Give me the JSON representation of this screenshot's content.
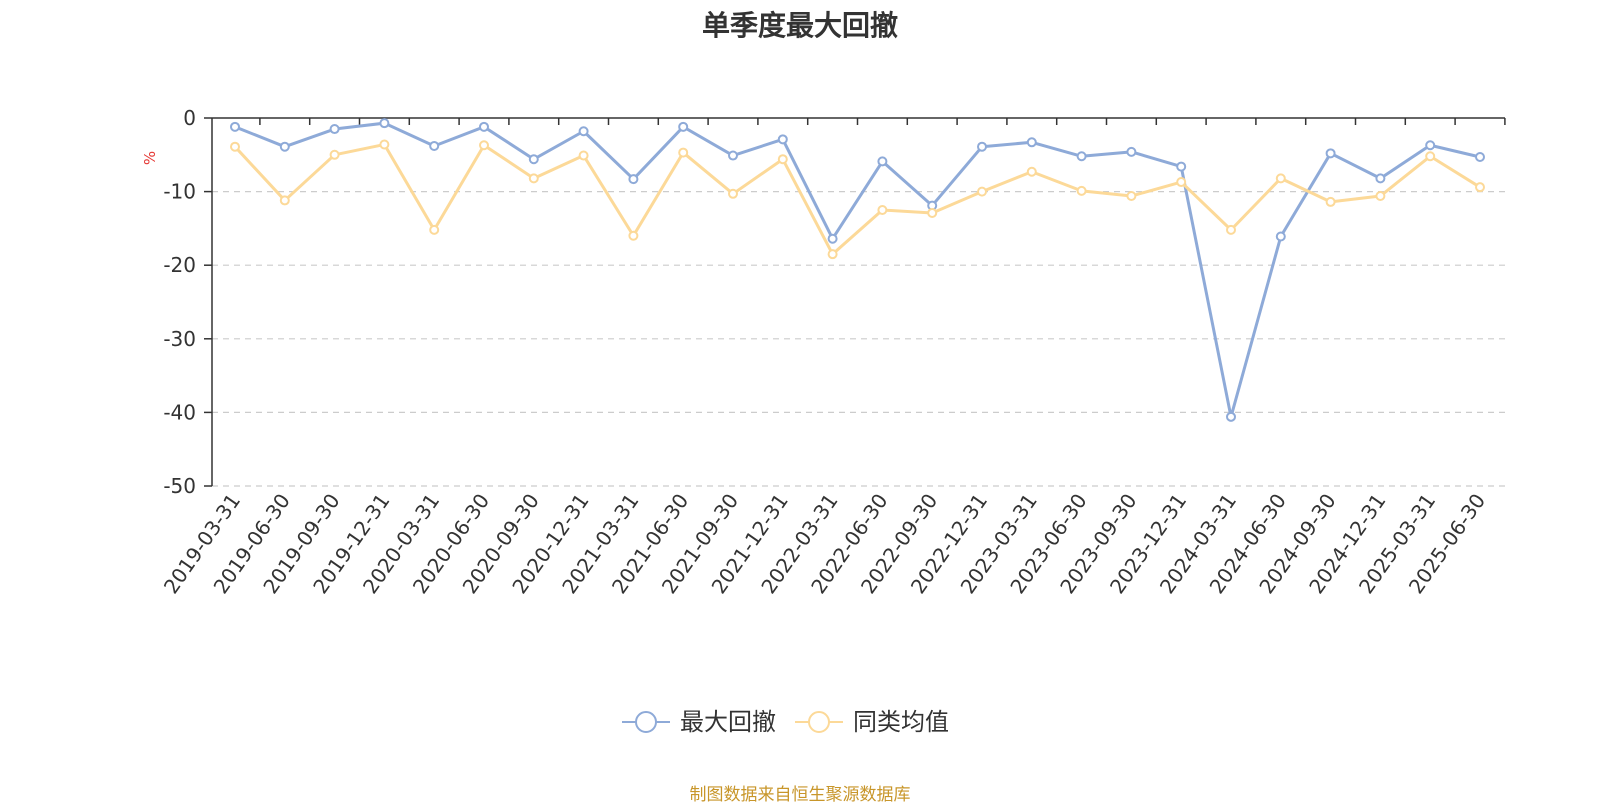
{
  "title": "单季度最大回撤",
  "source": "制图数据来自恒生聚源数据库",
  "chart_data": {
    "type": "line",
    "title": "单季度最大回撤",
    "ylabel": "%",
    "xlabel": "",
    "ylim": [
      -50,
      0
    ],
    "yticks": [
      0,
      -10,
      -20,
      -30,
      -40,
      -50
    ],
    "grid": true,
    "legend_position": "bottom",
    "categories": [
      "2019-03-31",
      "2019-06-30",
      "2019-09-30",
      "2019-12-31",
      "2020-03-31",
      "2020-06-30",
      "2020-09-30",
      "2020-12-31",
      "2021-03-31",
      "2021-06-30",
      "2021-09-30",
      "2021-12-31",
      "2022-03-31",
      "2022-06-30",
      "2022-09-30",
      "2022-12-31",
      "2023-03-31",
      "2023-06-30",
      "2023-09-30",
      "2023-12-31",
      "2024-03-31",
      "2024-06-30",
      "2024-09-30",
      "2024-12-31",
      "2025-03-31",
      "2025-06-30"
    ],
    "series": [
      {
        "name": "最大回撤",
        "color": "#8eaad8",
        "values": [
          -1.2,
          -3.9,
          -1.5,
          -0.7,
          -3.8,
          -1.2,
          -5.6,
          -1.8,
          -8.3,
          -1.2,
          -5.1,
          -2.9,
          -16.4,
          -5.9,
          -11.9,
          -3.9,
          -3.3,
          -5.2,
          -4.6,
          -6.6,
          -40.6,
          -16.1,
          -4.8,
          -8.2,
          -3.7,
          -5.3
        ]
      },
      {
        "name": "同类均值",
        "color": "#fcd998",
        "values": [
          -3.9,
          -11.2,
          -5.0,
          -3.6,
          -15.2,
          -3.7,
          -8.2,
          -5.1,
          -16.0,
          -4.7,
          -10.3,
          -5.6,
          -18.5,
          -12.5,
          -12.9,
          -10.0,
          -7.3,
          -9.9,
          -10.6,
          -8.7,
          -15.2,
          -8.2,
          -11.4,
          -10.6,
          -5.2,
          -9.4
        ]
      }
    ]
  }
}
